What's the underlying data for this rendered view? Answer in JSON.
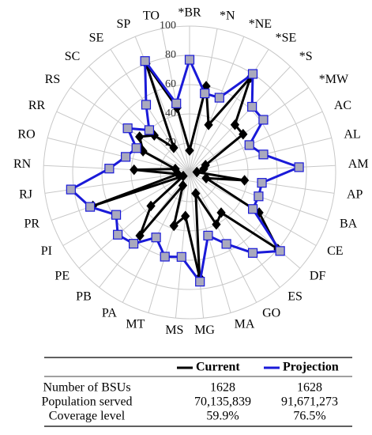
{
  "chart_data": {
    "type": "radar",
    "categories": [
      "*BR",
      "*N",
      "*NE",
      "*SE",
      "*S",
      "*MW",
      "AC",
      "AL",
      "AM",
      "AP",
      "BA",
      "CE",
      "DF",
      "ES",
      "GO",
      "MA",
      "MG",
      "MS",
      "MT",
      "PA",
      "PB",
      "PE",
      "PI",
      "PR",
      "RJ",
      "RN",
      "RO",
      "RR",
      "RS",
      "SC",
      "SE",
      "SP",
      "TO"
    ],
    "series": [
      {
        "name": "Current",
        "color": "#000000",
        "marker": "diamond",
        "marker_fill": "#000000",
        "values": [
          15,
          60,
          35,
          77,
          45,
          45,
          12,
          10,
          5,
          38,
          12,
          55,
          80,
          35,
          40,
          15,
          72,
          30,
          38,
          10,
          55,
          35,
          5,
          70,
          8,
          38,
          10,
          35,
          42,
          35,
          20,
          80,
          45
        ]
      },
      {
        "name": "Projection",
        "color": "#1a1ad8",
        "marker": "square",
        "marker_fill": "#a9a9bd",
        "values": [
          77,
          55,
          55,
          80,
          62,
          62,
          45,
          52,
          75,
          50,
          50,
          50,
          82,
          70,
          55,
          45,
          75,
          58,
          60,
          50,
          62,
          65,
          58,
          72,
          82,
          55,
          45,
          40,
          52,
          40,
          55,
          82,
          48
        ]
      }
    ],
    "rlim": [
      0,
      100
    ],
    "rticks": [
      20,
      40,
      60,
      80,
      100
    ],
    "grid": true
  },
  "table": {
    "rows": [
      [
        "Number of BSUs",
        "1628",
        "1628"
      ],
      [
        "Population served",
        "70,135,839",
        "91,671,273"
      ],
      [
        "Coverage level",
        "59.9%",
        "76.5%"
      ]
    ]
  }
}
